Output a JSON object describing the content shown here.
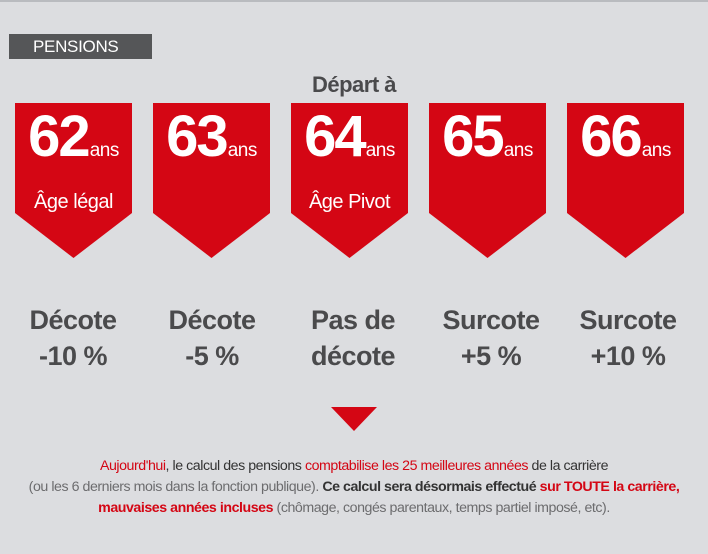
{
  "tag": "PENSIONS",
  "heading": "Départ à",
  "columns": [
    {
      "age": "62",
      "unit": "ans",
      "sub": "Âge légal",
      "effect_line1": "Décote",
      "effect_line2": "-10 %"
    },
    {
      "age": "63",
      "unit": "ans",
      "sub": "",
      "effect_line1": "Décote",
      "effect_line2": "-5 %"
    },
    {
      "age": "64",
      "unit": "ans",
      "sub": "Âge Pivot",
      "effect_line1": "Pas de",
      "effect_line2": "décote"
    },
    {
      "age": "65",
      "unit": "ans",
      "sub": "",
      "effect_line1": "Surcote",
      "effect_line2": "+5 %"
    },
    {
      "age": "66",
      "unit": "ans",
      "sub": "",
      "effect_line1": "Surcote",
      "effect_line2": "+10 %"
    }
  ],
  "paragraph": {
    "p1": "Aujourd'hui",
    "p2": ", le calcul des pensions ",
    "p3": "comptabilise les 25 meilleures années",
    "p4": " de la carrière",
    "p5": "(ou les 6 derniers mois dans la fonction publique). ",
    "p6": "Ce calcul sera désormais effectué ",
    "p7": "sur TOUTE la carrière, mauvaises années incluses",
    "p8": " (chômage, congés parentaux, temps partiel imposé, etc)."
  },
  "colors": {
    "background": "#dcdde0",
    "accent_red": "#d40614",
    "text_gray": "#4a4a4c",
    "tag_bg": "#555658"
  }
}
